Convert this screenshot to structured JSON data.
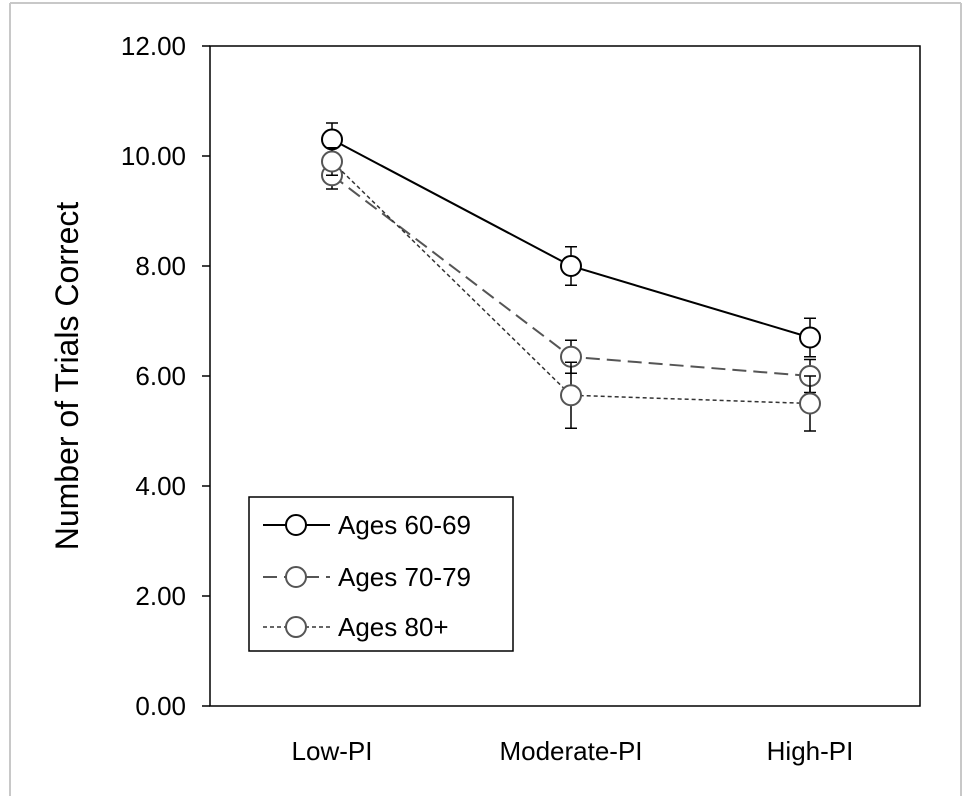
{
  "chart_data": {
    "type": "line",
    "title": "",
    "xlabel": "",
    "ylabel": "Number of Trials Correct",
    "categories": [
      "Low-PI",
      "Moderate-PI",
      "High-PI"
    ],
    "ylim": [
      0,
      12
    ],
    "yticks": [
      "0.00",
      "2.00",
      "4.00",
      "6.00",
      "8.00",
      "10.00",
      "12.00"
    ],
    "grid": false,
    "legend_position": "bottom-left",
    "series": [
      {
        "name": "Ages 60-69",
        "values": [
          10.3,
          8.0,
          6.7
        ],
        "errors": [
          0.3,
          0.35,
          0.35
        ],
        "line_color": "#000000",
        "marker_stroke": "#000000",
        "dash": "solid"
      },
      {
        "name": "Ages 70-79",
        "values": [
          9.65,
          6.35,
          6.0
        ],
        "errors": [
          0.25,
          0.3,
          0.3
        ],
        "line_color": "#555555",
        "marker_stroke": "#555555",
        "dash": "dashed"
      },
      {
        "name": "Ages 80+",
        "values": [
          9.9,
          5.65,
          5.5
        ],
        "errors": [
          0.25,
          0.6,
          0.5
        ],
        "line_color": "#333333",
        "marker_stroke": "#555555",
        "dash": "dotted"
      }
    ]
  }
}
